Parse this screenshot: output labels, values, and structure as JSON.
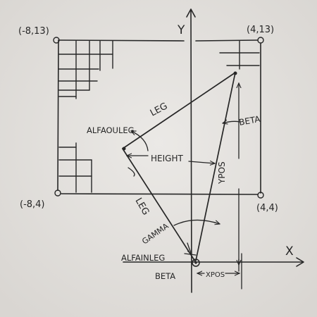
{
  "axes": {
    "x": "X",
    "y": "Y"
  },
  "corners": {
    "top_left": "(-8,13)",
    "top_right": "(4,13)",
    "bottom_left": "(-8,4)",
    "bottom_right": "(4,4)"
  },
  "labels": {
    "leg_upper": "LEG",
    "leg_lower": "LEG",
    "alfa_out_leg": "ALFAOULEG",
    "height": "HEIGHT",
    "beta_top": "BETA",
    "ypos": "YPOS",
    "gamma": "GAMMA",
    "alfa_in_leg": "ALFAINLEG",
    "beta_bottom": "BETA",
    "xpos": "XPOS"
  }
}
